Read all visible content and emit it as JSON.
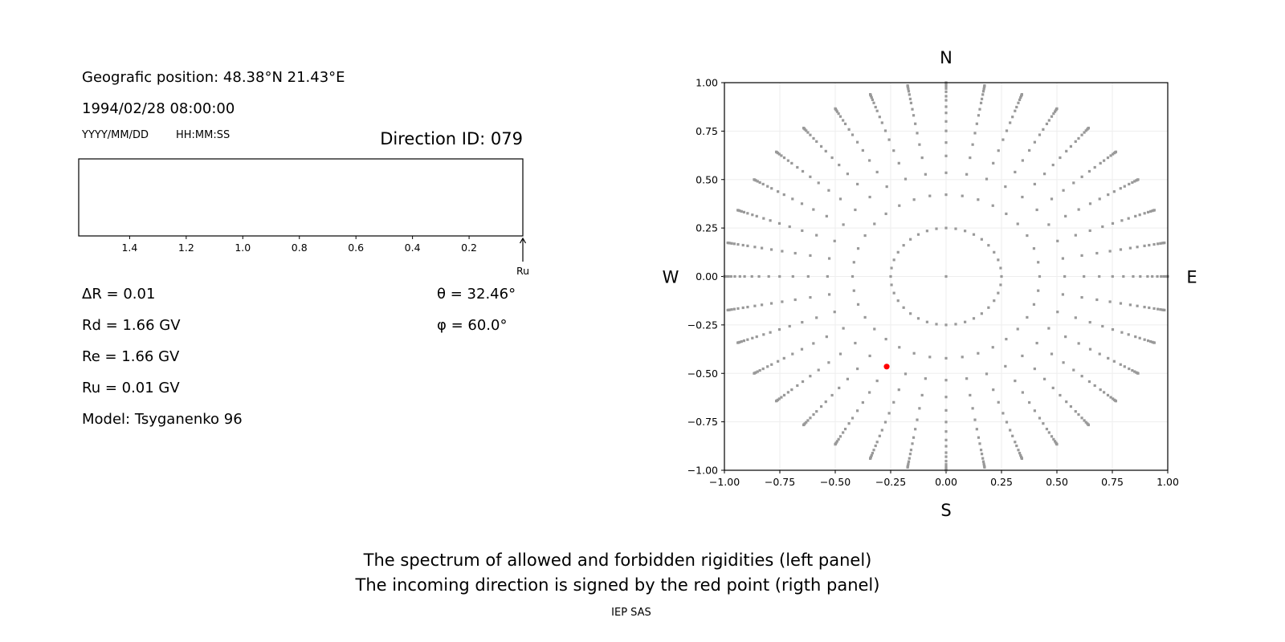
{
  "header": {
    "position": "Geografic position: 48.38°N 21.43°E",
    "datetime": "1994/02/28 08:00:00",
    "date_format": "YYYY/MM/DD",
    "time_format": "HH:MM:SS",
    "direction_id": "Direction ID: 079"
  },
  "params": {
    "delta_r": "ΔR = 0.01",
    "rd": "Rd = 1.66 GV",
    "re": "Re = 1.66 GV",
    "ru": "Ru = 0.01 GV",
    "model": "Model: Tsyganenko 96",
    "theta": "θ = 32.46°",
    "phi": "φ = 60.0°"
  },
  "footer": {
    "line1": "The spectrum of allowed and forbidden rigidities (left panel)",
    "line2": "The incoming direction is signed by the red point (rigth panel)",
    "credit": "IEP SAS"
  },
  "colors": {
    "grid_points": "#999999",
    "selected_point": "#ff0000",
    "gridlines": "#eeeeee"
  },
  "chart_data": [
    {
      "type": "bar",
      "title": "",
      "xlim": [
        1.58,
        0.01
      ],
      "x_inverted": true,
      "xticks": [
        "1.4",
        "1.2",
        "1.0",
        "0.8",
        "0.6",
        "0.4",
        "0.2"
      ],
      "xtick_values": [
        1.4,
        1.2,
        1.0,
        0.8,
        0.6,
        0.4,
        0.2
      ],
      "bars": [],
      "annotation": {
        "label": "Ru",
        "x": 0.01
      }
    },
    {
      "type": "scatter",
      "xlim": [
        -1,
        1
      ],
      "ylim": [
        -1,
        1
      ],
      "grid": true,
      "xticks": [
        "−1.00",
        "−0.75",
        "−0.50",
        "−0.25",
        "0.00",
        "0.25",
        "0.50",
        "0.75",
        "1.00"
      ],
      "yticks": [
        "−1.00",
        "−0.75",
        "−0.50",
        "−0.25",
        "0.00",
        "0.25",
        "0.50",
        "0.75",
        "1.00"
      ],
      "tick_values": [
        -1,
        -0.75,
        -0.5,
        -0.25,
        0,
        0.25,
        0.5,
        0.75,
        1
      ],
      "compass": {
        "n": "N",
        "s": "S",
        "e": "E",
        "w": "W"
      },
      "direction_grid": {
        "radii": [
          0,
          0.25,
          0.422,
          0.535,
          0.622,
          0.691,
          0.751,
          0.8,
          0.844,
          0.876,
          0.909,
          0.93,
          0.953,
          0.97,
          0.982,
          0.991,
          0.997,
          1.0
        ],
        "azimuth_step_deg": 10
      },
      "selected": {
        "x": -0.268,
        "y": -0.465,
        "theta_deg": 32.46,
        "phi_deg": 60.0
      }
    }
  ]
}
